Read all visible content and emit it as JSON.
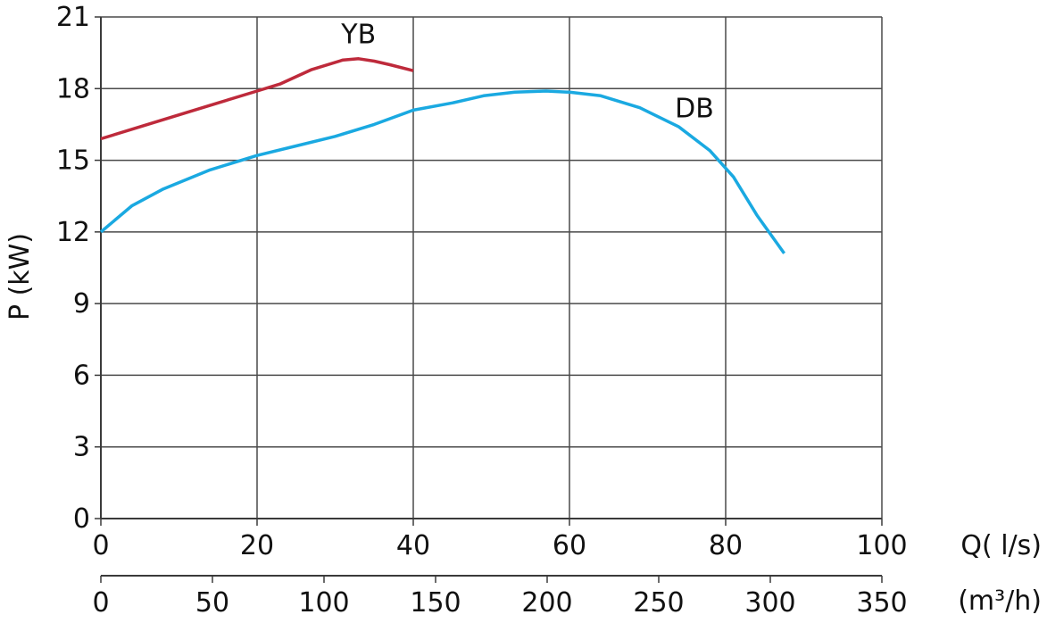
{
  "chart_data": {
    "type": "line",
    "xlabel": "Q( l/s)",
    "x2label": "(m³/h)",
    "ylabel": "P (kW)",
    "xlim": [
      0,
      100
    ],
    "ylim": [
      0,
      21
    ],
    "x2lim": [
      0,
      350
    ],
    "x_ticks": [
      0,
      20,
      40,
      60,
      80,
      100
    ],
    "x2_ticks": [
      0,
      50,
      100,
      150,
      200,
      250,
      300,
      350
    ],
    "y_ticks": [
      0,
      3,
      6,
      9,
      12,
      15,
      18,
      21
    ],
    "grid": true,
    "series": [
      {
        "name": "YB",
        "color": "#be2a3b",
        "label_at": [
          33,
          19.9
        ],
        "points": [
          [
            0,
            15.9
          ],
          [
            5,
            16.4
          ],
          [
            10,
            16.9
          ],
          [
            15,
            17.4
          ],
          [
            20,
            17.9
          ],
          [
            23,
            18.2
          ],
          [
            27,
            18.8
          ],
          [
            31,
            19.2
          ],
          [
            33,
            19.25
          ],
          [
            35,
            19.15
          ],
          [
            37,
            19.0
          ],
          [
            40,
            18.75
          ]
        ]
      },
      {
        "name": "DB",
        "color": "#1aa9e1",
        "label_at": [
          76,
          16.8
        ],
        "points": [
          [
            0,
            12.0
          ],
          [
            4,
            13.1
          ],
          [
            8,
            13.8
          ],
          [
            14,
            14.6
          ],
          [
            20,
            15.2
          ],
          [
            25,
            15.6
          ],
          [
            30,
            16.0
          ],
          [
            35,
            16.5
          ],
          [
            40,
            17.1
          ],
          [
            45,
            17.4
          ],
          [
            49,
            17.7
          ],
          [
            53,
            17.85
          ],
          [
            57,
            17.9
          ],
          [
            60,
            17.85
          ],
          [
            64,
            17.7
          ],
          [
            69,
            17.2
          ],
          [
            74,
            16.4
          ],
          [
            78,
            15.4
          ],
          [
            81,
            14.3
          ],
          [
            84,
            12.7
          ],
          [
            87.5,
            11.1
          ]
        ]
      }
    ]
  }
}
